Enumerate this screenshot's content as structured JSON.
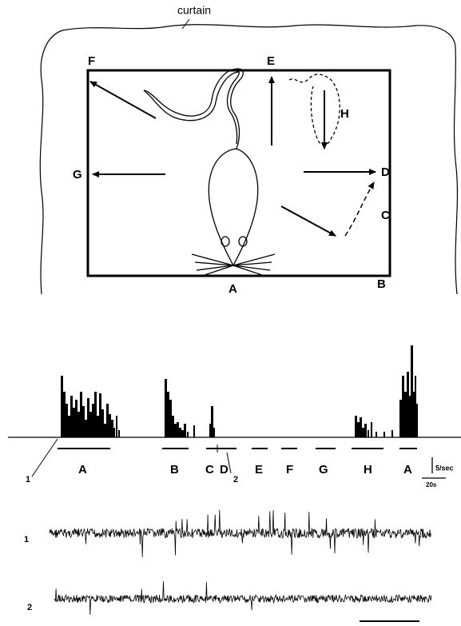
{
  "diagram": {
    "caption": "curtain",
    "positions": [
      "F",
      "E",
      "D",
      "C",
      "B",
      "A",
      "G",
      "H"
    ]
  },
  "histogram": {
    "periods": [
      "A",
      "B",
      "C",
      "D",
      "E",
      "F",
      "G",
      "H",
      "A"
    ],
    "markers": [
      "1",
      "2"
    ],
    "rate_scale": "5/sec",
    "time_scale": "20s"
  },
  "traces": [
    "1",
    "2"
  ]
}
